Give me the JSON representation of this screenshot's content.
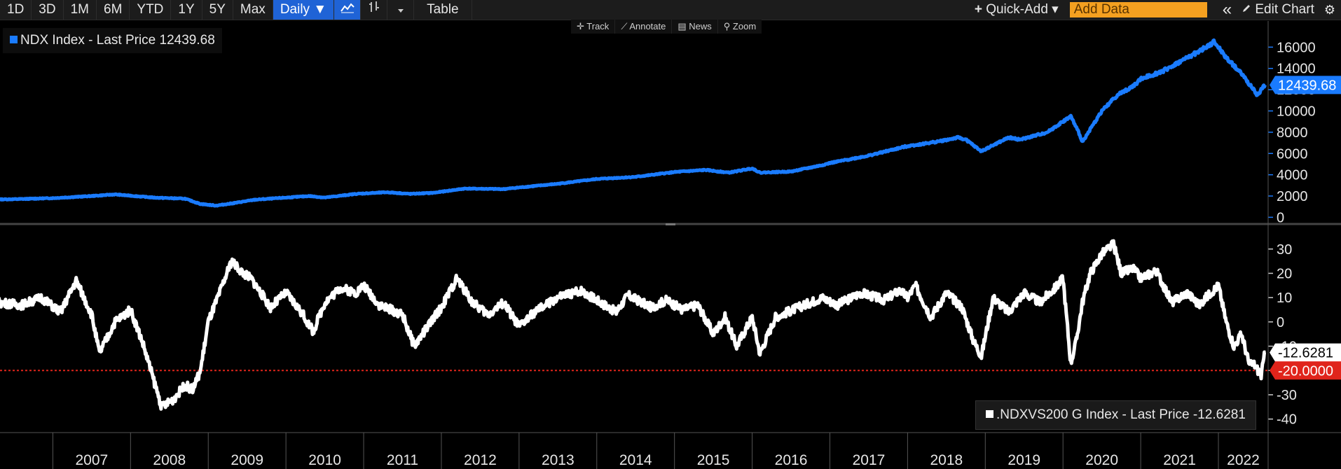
{
  "toolbar": {
    "ranges": [
      "1D",
      "3D",
      "1M",
      "6M",
      "YTD",
      "1Y",
      "5Y",
      "Max"
    ],
    "frequency": "Daily ▼",
    "table_label": "Table",
    "quick_add": "Quick-Add ▾",
    "add_data_placeholder": "Add Data",
    "edit_chart": "Edit Chart",
    "collapse_glyph": "«",
    "gear_glyph": "⚙"
  },
  "subtoolbar": [
    "Track",
    "Annotate",
    "News",
    "Zoom"
  ],
  "colors": {
    "top_series": "#1a7bff",
    "bottom_series": "#ffffff",
    "threshold": "#e0241b"
  },
  "chart_data": [
    {
      "type": "line",
      "legend": "NDX Index - Last Price 12439.68",
      "last_label": "12439.68",
      "x_unit": "year",
      "series": [
        {
          "name": "NDX Index",
          "x": [
            2006.0,
            2006.5,
            2007.0,
            2007.5,
            2007.8,
            2008.3,
            2008.7,
            2008.9,
            2009.1,
            2009.3,
            2009.6,
            2010.0,
            2010.3,
            2010.5,
            2010.9,
            2011.3,
            2011.6,
            2011.9,
            2012.3,
            2012.8,
            2013.0,
            2013.5,
            2014.0,
            2014.5,
            2015.0,
            2015.4,
            2015.7,
            2016.0,
            2016.1,
            2016.5,
            2016.9,
            2017.0,
            2017.5,
            2018.0,
            2018.2,
            2018.45,
            2018.65,
            2018.75,
            2018.95,
            2019.0,
            2019.3,
            2019.45,
            2019.8,
            2020.1,
            2020.2,
            2020.25,
            2020.5,
            2020.7,
            2020.9,
            2021.0,
            2021.3,
            2021.6,
            2021.8,
            2021.95,
            2022.1,
            2022.3,
            2022.4,
            2022.5,
            2022.6
          ],
          "values": [
            1650,
            1700,
            1800,
            2000,
            2150,
            1850,
            1750,
            1250,
            1100,
            1300,
            1650,
            1850,
            2000,
            1850,
            2200,
            2350,
            2200,
            2300,
            2700,
            2650,
            2800,
            3150,
            3600,
            3800,
            4250,
            4450,
            4200,
            4600,
            4200,
            4300,
            4900,
            5100,
            5800,
            6700,
            6900,
            7200,
            7500,
            7300,
            6200,
            6400,
            7500,
            7300,
            8000,
            9500,
            8000,
            7100,
            10000,
            11500,
            12300,
            13000,
            13800,
            15000,
            15800,
            16500,
            15000,
            13500,
            12500,
            11500,
            12439.68
          ]
        }
      ],
      "y_ticks": [
        0,
        2000,
        4000,
        6000,
        8000,
        10000,
        12000,
        14000,
        16000
      ],
      "ylim": [
        -500,
        17800
      ],
      "xlim": [
        2006.32,
        2022.64
      ]
    },
    {
      "type": "line",
      "legend": ".NDXVS200 G Index - Last Price -12.6281",
      "last_label": "-12.6281",
      "threshold_label": "-20.0000",
      "threshold": -20,
      "x_unit": "year",
      "series": [
        {
          "name": ".NDXVS200 G Index",
          "x": [
            2006.0,
            2006.3,
            2006.6,
            2006.85,
            2007.1,
            2007.3,
            2007.5,
            2007.6,
            2007.8,
            2008.0,
            2008.15,
            2008.4,
            2008.55,
            2008.7,
            2008.8,
            2008.9,
            2009.0,
            2009.1,
            2009.3,
            2009.45,
            2009.55,
            2009.8,
            2010.0,
            2010.2,
            2010.35,
            2010.5,
            2010.7,
            2010.9,
            2011.0,
            2011.2,
            2011.5,
            2011.65,
            2011.8,
            2012.0,
            2012.2,
            2012.4,
            2012.6,
            2012.8,
            2013.0,
            2013.2,
            2013.5,
            2013.8,
            2014.0,
            2014.25,
            2014.4,
            2014.7,
            2014.9,
            2015.1,
            2015.3,
            2015.5,
            2015.65,
            2015.8,
            2016.0,
            2016.1,
            2016.3,
            2016.6,
            2016.9,
            2017.1,
            2017.4,
            2017.7,
            2017.9,
            2018.0,
            2018.1,
            2018.3,
            2018.5,
            2018.7,
            2018.85,
            2018.95,
            2019.1,
            2019.3,
            2019.5,
            2019.7,
            2019.9,
            2020.0,
            2020.1,
            2020.17,
            2020.25,
            2020.35,
            2020.5,
            2020.65,
            2020.75,
            2020.9,
            2021.0,
            2021.2,
            2021.4,
            2021.5,
            2021.6,
            2021.75,
            2021.9,
            2022.0,
            2022.1,
            2022.2,
            2022.3,
            2022.4,
            2022.45,
            2022.55,
            2022.6
          ],
          "values": [
            6,
            8,
            7,
            10,
            4,
            17,
            3,
            -13,
            0,
            5,
            -8,
            -35,
            -32,
            -26,
            -28,
            -20,
            0,
            8,
            25,
            20,
            18,
            6,
            12,
            4,
            -4,
            8,
            14,
            12,
            15,
            7,
            3,
            -10,
            -3,
            6,
            18,
            8,
            3,
            8,
            -2,
            4,
            10,
            13,
            9,
            4,
            11,
            6,
            9,
            5,
            7,
            -5,
            2,
            -10,
            2,
            -13,
            2,
            6,
            10,
            7,
            12,
            9,
            13,
            10,
            15,
            2,
            12,
            6,
            -8,
            -14,
            10,
            4,
            12,
            8,
            14,
            18,
            -17,
            -8,
            8,
            20,
            28,
            32,
            20,
            22,
            18,
            21,
            8,
            10,
            12,
            7,
            12,
            15,
            0,
            -10,
            -5,
            -18,
            -17,
            -22,
            -12.6281
          ]
        }
      ],
      "y_ticks": [
        -40,
        -30,
        -20,
        -10,
        0,
        10,
        20,
        30
      ],
      "ylim": [
        -45,
        38
      ],
      "xlim": [
        2006.32,
        2022.64
      ]
    }
  ],
  "x_axis": {
    "ticks": [
      "2007",
      "2008",
      "2009",
      "2010",
      "2011",
      "2012",
      "2013",
      "2014",
      "2015",
      "2016",
      "2017",
      "2018",
      "2019",
      "2020",
      "2021",
      "2022"
    ]
  }
}
